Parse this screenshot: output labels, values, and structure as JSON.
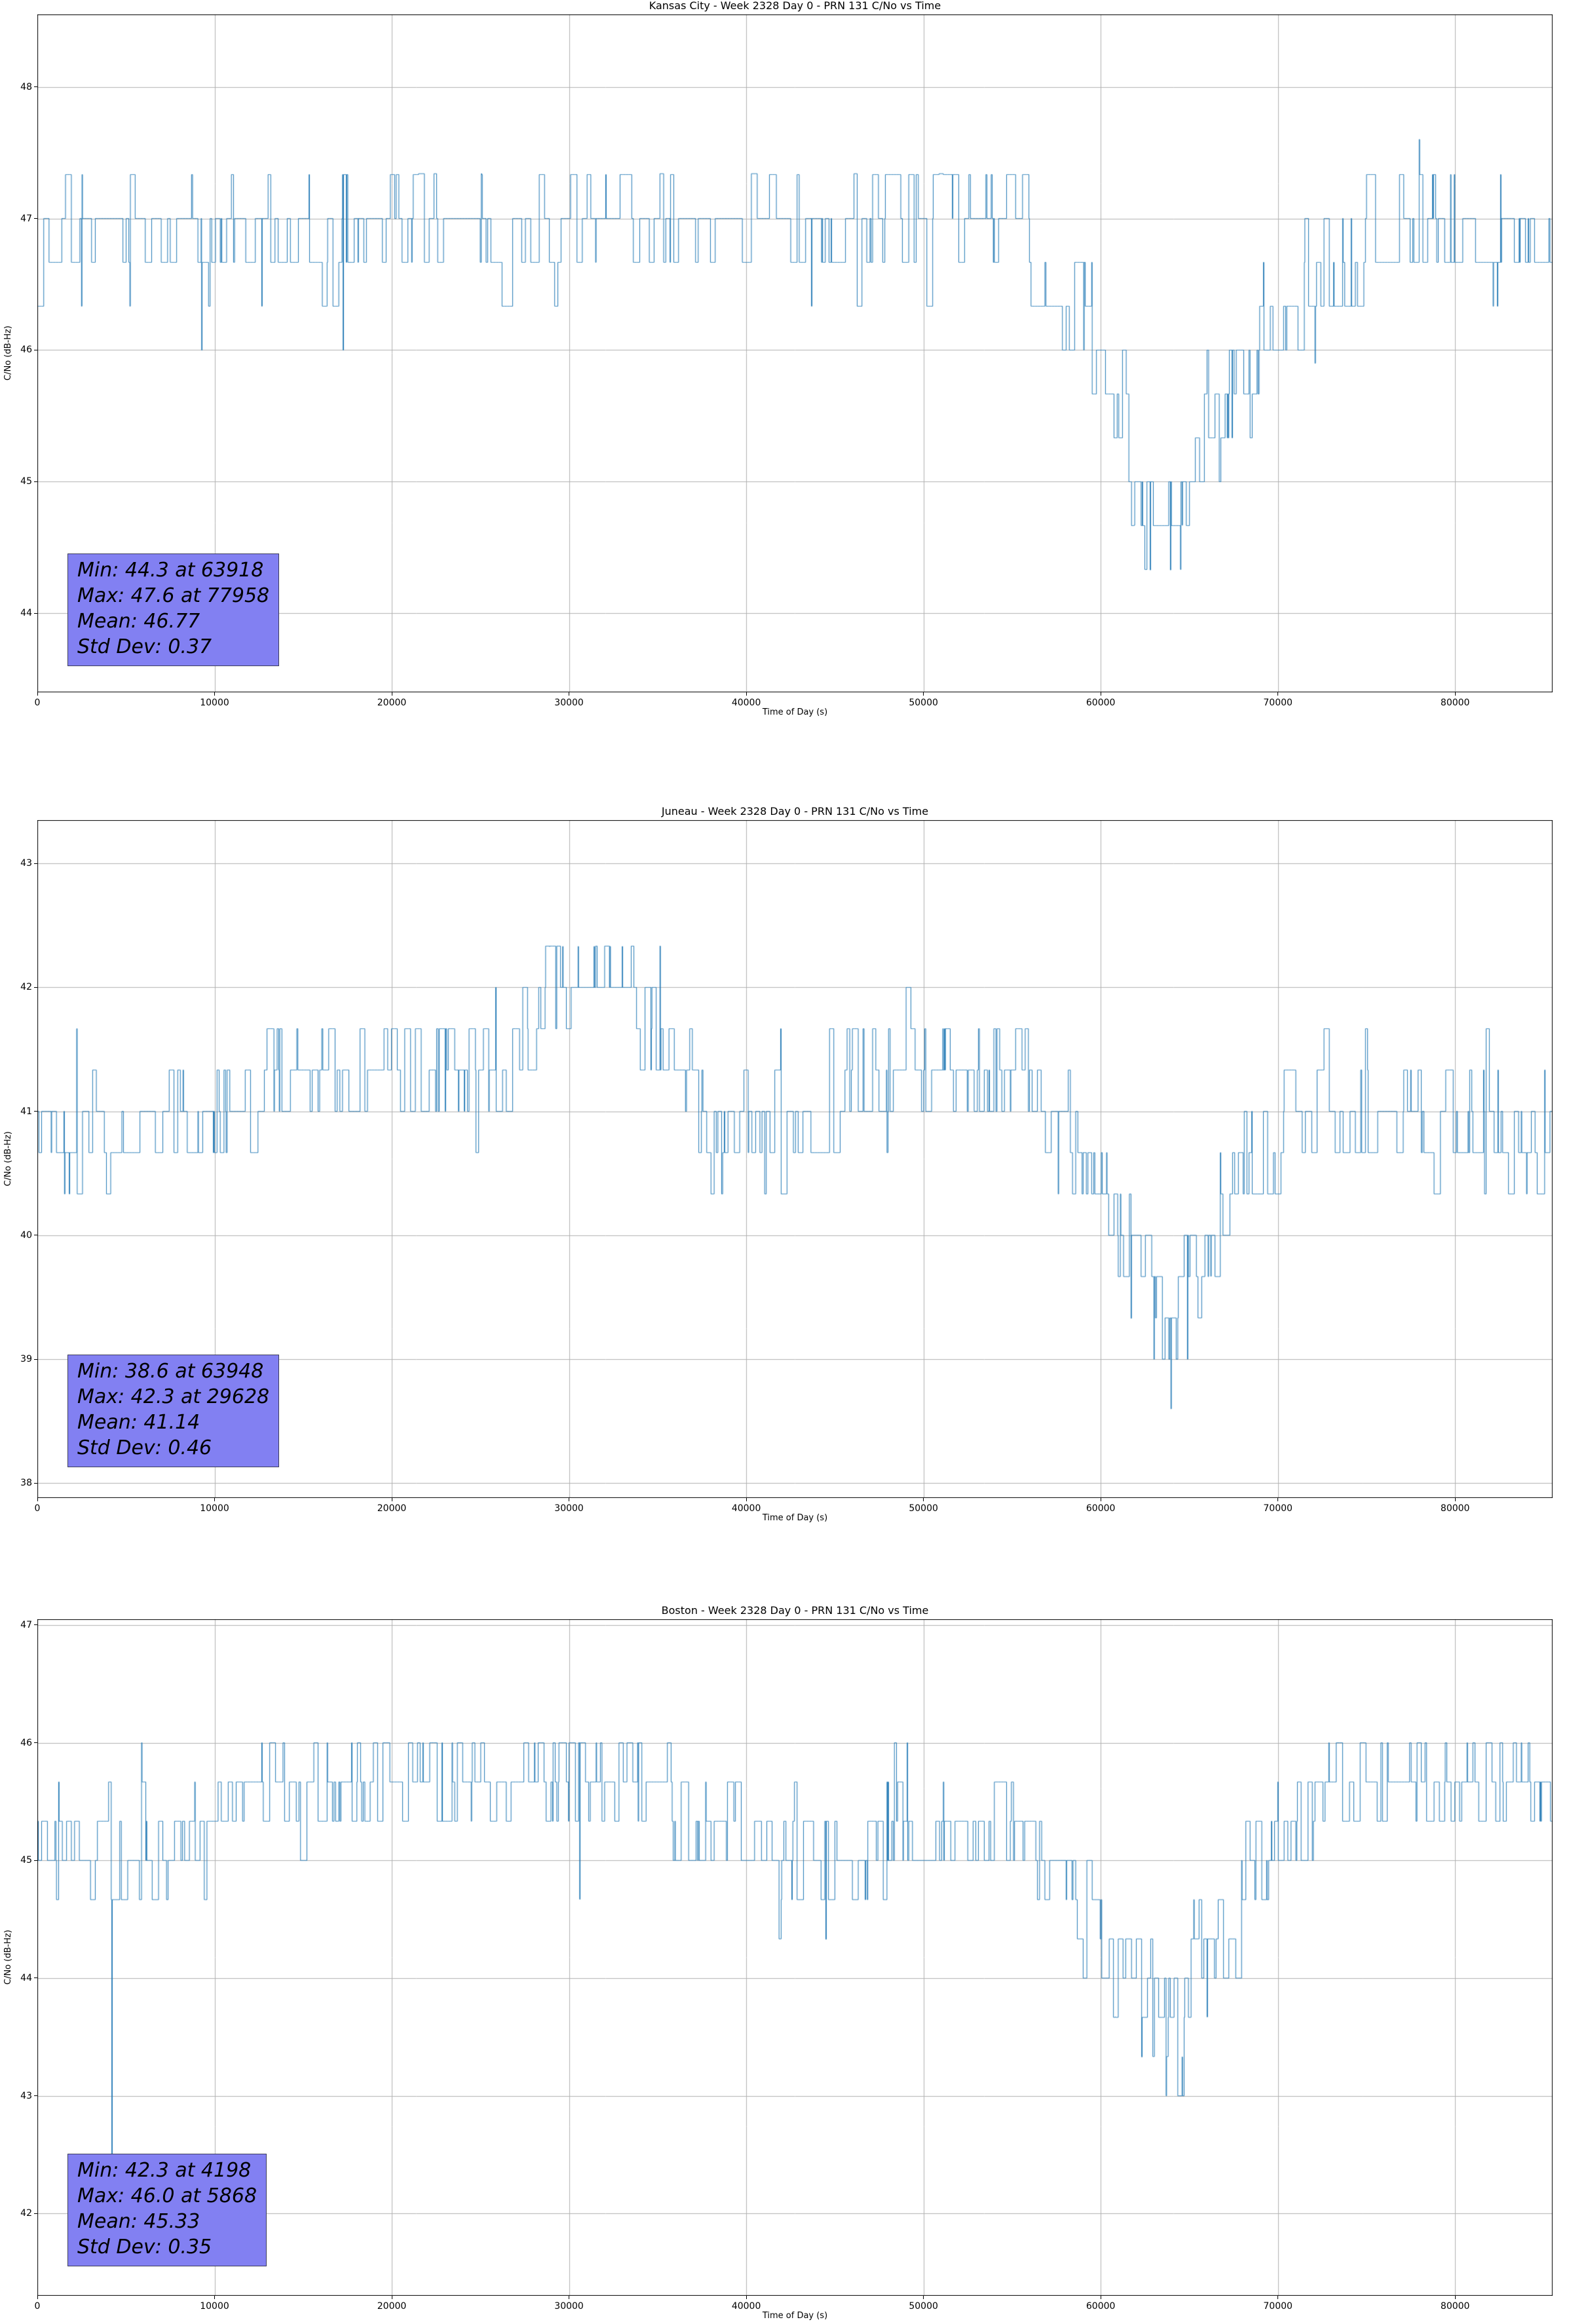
{
  "style": {
    "background": "#ffffff",
    "line_color": "#1f77b4",
    "grid_color": "#b0b0b0",
    "spine_color": "#000000",
    "annotation_bg": "#8280f2",
    "annotation_border": "#3d3d5c",
    "annotation_text": "#000000"
  },
  "chart_data": [
    {
      "type": "line",
      "title": "Kansas City - Week 2328 Day 0 - PRN 131 C/No vs Time",
      "xlabel": "Time of Day (s)",
      "ylabel": "C/No (dB-Hz)",
      "xlim": [
        0,
        85500
      ],
      "ylim": [
        43.4,
        48.55
      ],
      "xticks": [
        0,
        10000,
        20000,
        30000,
        40000,
        50000,
        60000,
        70000,
        80000
      ],
      "yticks": [
        44,
        45,
        46,
        47,
        48
      ],
      "grid": true,
      "legend": "none",
      "stats": {
        "min": 44.3,
        "min_t": 63918,
        "max": 47.6,
        "max_t": 77958,
        "mean": 46.77,
        "std_dev": 0.37
      },
      "annotation": {
        "lines": [
          "Min: 44.3 at 63918",
          "Max: 47.6 at 77958",
          "Mean: 46.77",
          "Std Dev: 0.37"
        ]
      },
      "series_model": {
        "quant_step": 0.333333,
        "sample_dt": 30,
        "seed": 7,
        "value_clamp": [
          44.33,
          47.34
        ],
        "offset_weights": [
          0.01,
          0.42,
          0.47,
          0.09,
          0.01
        ],
        "profile": [
          [
            0,
            46.9
          ],
          [
            46000,
            46.9
          ],
          [
            47500,
            47.15
          ],
          [
            55000,
            47.15
          ],
          [
            56500,
            46.7
          ],
          [
            58500,
            46.4
          ],
          [
            60000,
            46.05
          ],
          [
            61500,
            45.6
          ],
          [
            62500,
            45.15
          ],
          [
            63400,
            44.85
          ],
          [
            64400,
            44.85
          ],
          [
            65200,
            45.1
          ],
          [
            66000,
            45.5
          ],
          [
            67000,
            45.8
          ],
          [
            68500,
            46.1
          ],
          [
            70500,
            46.4
          ],
          [
            72500,
            46.6
          ],
          [
            74500,
            46.8
          ],
          [
            75500,
            46.9
          ],
          [
            86400,
            46.9
          ]
        ],
        "bias_windows": [
          [
            0,
            4500,
            -0.22
          ],
          [
            8500,
            17000,
            -0.28
          ],
          [
            15500,
            22500,
            0.3
          ],
          [
            31000,
            43000,
            0.32
          ],
          [
            43000,
            46500,
            -0.22
          ],
          [
            47500,
            55000,
            0.45
          ],
          [
            56000,
            68500,
            -0.3
          ],
          [
            75000,
            80500,
            0.4
          ],
          [
            81500,
            86400,
            -0.25
          ]
        ],
        "events": [
          [
            17250,
            46.0
          ],
          [
            61900,
            44.67
          ],
          [
            62800,
            44.33
          ],
          [
            63918,
            44.33
          ],
          [
            64600,
            44.67
          ],
          [
            65800,
            45.0
          ],
          [
            72100,
            45.9
          ],
          [
            77958,
            47.6
          ]
        ]
      }
    },
    {
      "type": "line",
      "title": "Juneau - Week 2328 Day 0 - PRN 131 C/No vs Time",
      "xlabel": "Time of Day (s)",
      "ylabel": "C/No (dB-Hz)",
      "xlim": [
        0,
        85500
      ],
      "ylim": [
        37.88,
        43.35
      ],
      "xticks": [
        0,
        10000,
        20000,
        30000,
        40000,
        50000,
        60000,
        70000,
        80000
      ],
      "yticks": [
        38,
        39,
        40,
        41,
        42,
        43
      ],
      "grid": true,
      "legend": "none",
      "stats": {
        "min": 38.6,
        "min_t": 63948,
        "max": 42.3,
        "max_t": 29628,
        "mean": 41.14,
        "std_dev": 0.46
      },
      "annotation": {
        "lines": [
          "Min: 38.6 at 63948",
          "Max: 42.3 at 29628",
          "Mean: 41.14",
          "Std Dev: 0.46"
        ]
      },
      "series_model": {
        "quant_step": 0.333333,
        "sample_dt": 30,
        "seed": 13,
        "value_clamp": [
          39.0,
          42.34
        ],
        "offset_weights": [
          0.02,
          0.42,
          0.46,
          0.09,
          0.01
        ],
        "profile": [
          [
            0,
            40.9
          ],
          [
            9500,
            40.9
          ],
          [
            11500,
            41.05
          ],
          [
            14000,
            41.25
          ],
          [
            26000,
            41.25
          ],
          [
            27500,
            41.6
          ],
          [
            28500,
            41.9
          ],
          [
            33500,
            41.9
          ],
          [
            34800,
            41.6
          ],
          [
            36500,
            41.25
          ],
          [
            39000,
            41.05
          ],
          [
            44500,
            41.05
          ],
          [
            46500,
            41.25
          ],
          [
            56000,
            41.25
          ],
          [
            57500,
            41.05
          ],
          [
            59500,
            40.75
          ],
          [
            61000,
            40.35
          ],
          [
            62500,
            39.95
          ],
          [
            63800,
            39.75
          ],
          [
            64800,
            39.9
          ],
          [
            66000,
            40.2
          ],
          [
            67500,
            40.55
          ],
          [
            69500,
            40.8
          ],
          [
            71500,
            40.9
          ],
          [
            86400,
            40.9
          ]
        ],
        "bias_windows": [
          [
            1500,
            5500,
            -0.25
          ],
          [
            7000,
            26000,
            0.25
          ],
          [
            26500,
            34000,
            0.4
          ],
          [
            35500,
            44500,
            -0.2
          ],
          [
            45500,
            56000,
            0.22
          ],
          [
            57000,
            68000,
            -0.35
          ],
          [
            70000,
            80000,
            0.25
          ],
          [
            81000,
            86400,
            -0.22
          ]
        ],
        "events": [
          [
            28900,
            42.33
          ],
          [
            29628,
            42.33
          ],
          [
            30500,
            42.33
          ],
          [
            31400,
            42.33
          ],
          [
            32300,
            42.33
          ],
          [
            33000,
            42.33
          ],
          [
            61700,
            39.33
          ],
          [
            63000,
            39.0
          ],
          [
            63948,
            38.6
          ],
          [
            64900,
            39.0
          ],
          [
            66200,
            39.67
          ]
        ]
      }
    },
    {
      "type": "line",
      "title": "Boston - Week 2328 Day 0 - PRN 131 C/No vs Time",
      "xlabel": "Time of Day (s)",
      "ylabel": "C/No (dB-Hz)",
      "xlim": [
        0,
        85500
      ],
      "ylim": [
        41.3,
        47.05
      ],
      "xticks": [
        0,
        10000,
        20000,
        30000,
        40000,
        50000,
        60000,
        70000,
        80000
      ],
      "yticks": [
        42,
        43,
        44,
        45,
        46,
        47
      ],
      "grid": true,
      "legend": "none",
      "stats": {
        "min": 42.3,
        "min_t": 4198,
        "max": 46.0,
        "max_t": 5868,
        "mean": 45.33,
        "std_dev": 0.35
      },
      "annotation": {
        "lines": [
          "Min: 42.3 at 4198",
          "Max: 46.0 at 5868",
          "Mean: 45.33",
          "Std Dev: 0.35"
        ]
      },
      "series_model": {
        "quant_step": 0.333333,
        "sample_dt": 30,
        "seed": 5,
        "value_clamp": [
          43.0,
          46.0
        ],
        "offset_weights": [
          0.01,
          0.4,
          0.49,
          0.09,
          0.01
        ],
        "profile": [
          [
            0,
            45.2
          ],
          [
            7500,
            45.2
          ],
          [
            9500,
            45.45
          ],
          [
            12000,
            45.55
          ],
          [
            34500,
            45.55
          ],
          [
            37000,
            45.45
          ],
          [
            40000,
            45.3
          ],
          [
            44000,
            45.2
          ],
          [
            47000,
            45.3
          ],
          [
            55000,
            45.3
          ],
          [
            56500,
            45.15
          ],
          [
            58500,
            44.85
          ],
          [
            60500,
            44.45
          ],
          [
            62000,
            44.1
          ],
          [
            63500,
            43.95
          ],
          [
            65000,
            44.1
          ],
          [
            66500,
            44.5
          ],
          [
            68000,
            44.85
          ],
          [
            70000,
            45.1
          ],
          [
            72000,
            45.5
          ],
          [
            86400,
            45.5
          ]
        ],
        "bias_windows": [
          [
            0,
            7500,
            -0.3
          ],
          [
            9000,
            36000,
            0.3
          ],
          [
            40000,
            48000,
            -0.25
          ],
          [
            48000,
            55000,
            0.18
          ],
          [
            56000,
            68000,
            -0.35
          ],
          [
            69000,
            86400,
            0.28
          ]
        ],
        "events": [
          [
            4198,
            42.33
          ],
          [
            5868,
            46.0
          ],
          [
            30600,
            44.67
          ],
          [
            44500,
            44.33
          ],
          [
            60800,
            43.67
          ],
          [
            62300,
            43.33
          ],
          [
            63700,
            43.0
          ],
          [
            64600,
            43.33
          ],
          [
            66000,
            43.67
          ],
          [
            85600,
            44.67
          ]
        ]
      }
    }
  ]
}
